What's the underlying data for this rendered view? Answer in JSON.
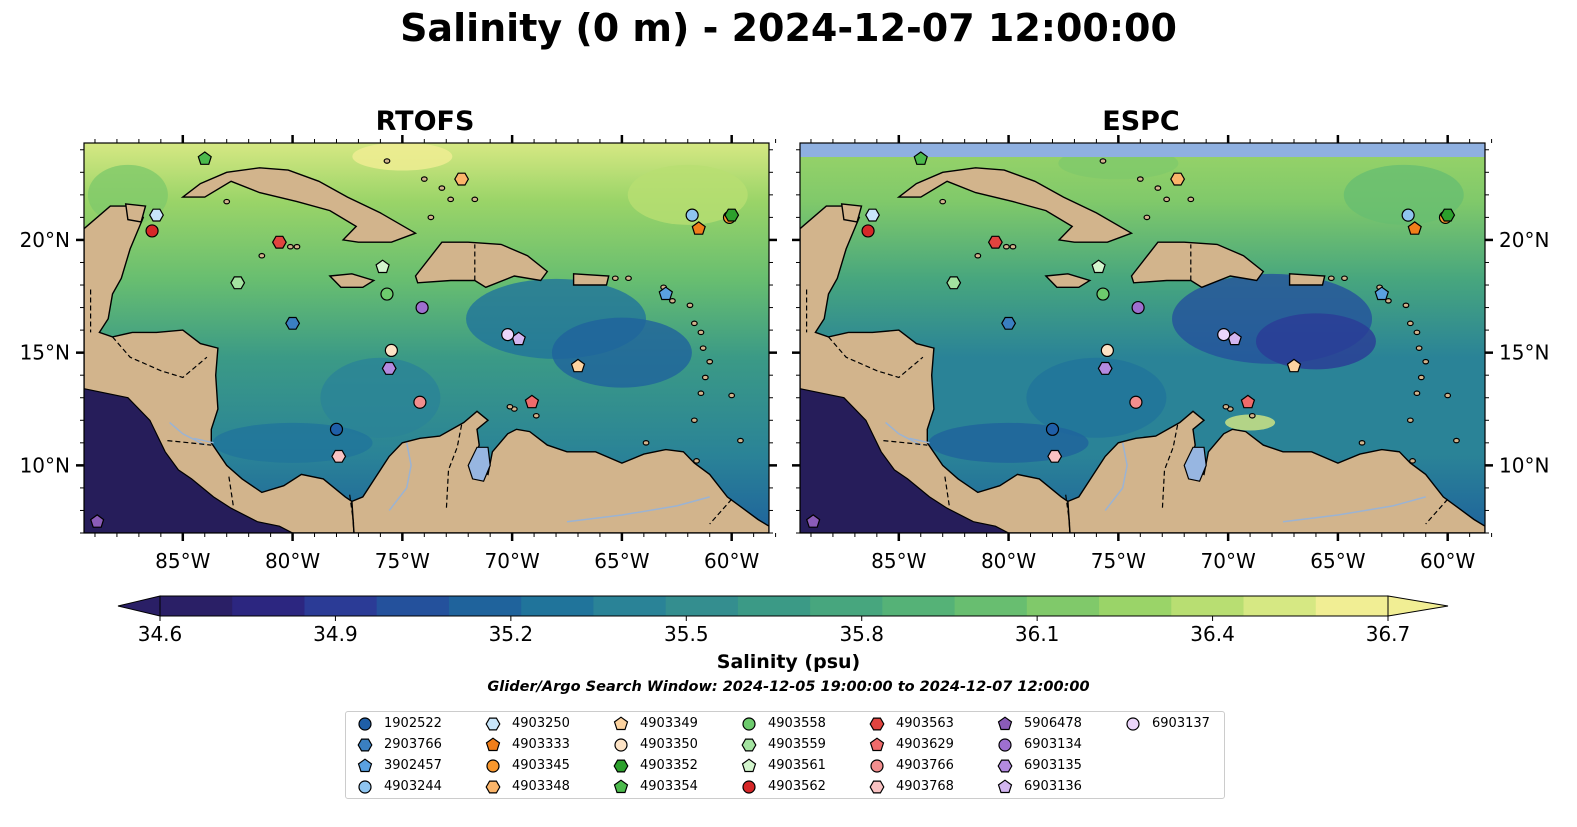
{
  "title": "Salinity (0 m) - 2024-12-07 12:00:00",
  "panels": [
    {
      "title": "RTOFS",
      "model": "RTOFS"
    },
    {
      "title": "ESPC",
      "model": "ESPC"
    }
  ],
  "map_extent": {
    "lon_min": -89.5,
    "lon_max": -58.3,
    "lat_min": 7.0,
    "lat_max": 24.3
  },
  "lon_ticks": [
    {
      "value": -85,
      "label": "85°W"
    },
    {
      "value": -80,
      "label": "80°W"
    },
    {
      "value": -75,
      "label": "75°W"
    },
    {
      "value": -70,
      "label": "70°W"
    },
    {
      "value": -65,
      "label": "65°W"
    },
    {
      "value": -60,
      "label": "60°W"
    }
  ],
  "lat_ticks": [
    {
      "value": 20,
      "label": "20°N"
    },
    {
      "value": 15,
      "label": "15°N"
    },
    {
      "value": 10,
      "label": "10°N"
    }
  ],
  "colorbar": {
    "label": "Salinity (psu)",
    "min": 34.6,
    "max": 36.7,
    "tick_labels": [
      "34.6",
      "34.9",
      "35.2",
      "35.5",
      "35.8",
      "36.1",
      "36.4",
      "36.7"
    ],
    "colors": [
      "#2a1f66",
      "#2c2680",
      "#2b3b96",
      "#24519c",
      "#1f639c",
      "#20749b",
      "#2a8397",
      "#348e8f",
      "#3b9a86",
      "#47a67e",
      "#55b277",
      "#68be70",
      "#80c96a",
      "#9ad468",
      "#b8de72",
      "#d6e883",
      "#f1ee94"
    ],
    "extend": "both"
  },
  "colors": {
    "land": "#d2b48c",
    "lake": "#97b6e1",
    "ocean_deep_fresh": "#261d5a",
    "high_salinity": "#f5ee98"
  },
  "search_window": "Glider/Argo Search Window: 2024-12-05 19:00:00 to 2024-12-07 12:00:00",
  "legend": [
    {
      "id": "1902522",
      "marker": "circle",
      "color": "#1f5fa8"
    },
    {
      "id": "2903766",
      "marker": "hexagon",
      "color": "#3a7fc1"
    },
    {
      "id": "3902457",
      "marker": "pentagon",
      "color": "#5aa0e0"
    },
    {
      "id": "4903244",
      "marker": "circle",
      "color": "#8fc5f0"
    },
    {
      "id": "4903250",
      "marker": "hexagon",
      "color": "#c9e6fa"
    },
    {
      "id": "4903333",
      "marker": "pentagon",
      "color": "#f07e1a"
    },
    {
      "id": "4903345",
      "marker": "circle",
      "color": "#f8972d"
    },
    {
      "id": "4903348",
      "marker": "hexagon",
      "color": "#fbb56a"
    },
    {
      "id": "4903349",
      "marker": "pentagon",
      "color": "#fcd3a0"
    },
    {
      "id": "4903350",
      "marker": "circle",
      "color": "#fde3c5"
    },
    {
      "id": "4903352",
      "marker": "hexagon",
      "color": "#2ca02c"
    },
    {
      "id": "4903354",
      "marker": "pentagon",
      "color": "#4cba4c"
    },
    {
      "id": "4903558",
      "marker": "circle",
      "color": "#6dcb6d"
    },
    {
      "id": "4903559",
      "marker": "hexagon",
      "color": "#a3e3a0"
    },
    {
      "id": "4903561",
      "marker": "pentagon",
      "color": "#d3f5cd"
    },
    {
      "id": "4903562",
      "marker": "circle",
      "color": "#d62728"
    },
    {
      "id": "4903563",
      "marker": "hexagon",
      "color": "#e0443f"
    },
    {
      "id": "4903629",
      "marker": "pentagon",
      "color": "#ef6b6b"
    },
    {
      "id": "4903766",
      "marker": "circle",
      "color": "#f28e8e"
    },
    {
      "id": "4903768",
      "marker": "hexagon",
      "color": "#f9c2c2"
    },
    {
      "id": "5906478",
      "marker": "pentagon",
      "color": "#8a5cb8"
    },
    {
      "id": "6903134",
      "marker": "circle",
      "color": "#9d6fcf"
    },
    {
      "id": "6903135",
      "marker": "hexagon",
      "color": "#b38ae0"
    },
    {
      "id": "6903136",
      "marker": "pentagon",
      "color": "#d3b6f0"
    },
    {
      "id": "6903137",
      "marker": "circle",
      "color": "#ecd6fb"
    }
  ],
  "floats": [
    {
      "id": "1902522",
      "lon": -78.0,
      "lat": 11.6
    },
    {
      "id": "2903766",
      "lon": -80.0,
      "lat": 16.3
    },
    {
      "id": "3902457",
      "lon": -63.0,
      "lat": 17.6
    },
    {
      "id": "4903244",
      "lon": -61.8,
      "lat": 21.1
    },
    {
      "id": "4903250",
      "lon": -86.2,
      "lat": 21.1
    },
    {
      "id": "4903333",
      "lon": -61.5,
      "lat": 20.5
    },
    {
      "id": "4903345",
      "lon": -60.1,
      "lat": 21.0
    },
    {
      "id": "4903348",
      "lon": -72.3,
      "lat": 22.7
    },
    {
      "id": "4903349",
      "lon": -67.0,
      "lat": 14.4
    },
    {
      "id": "4903350",
      "lon": -75.5,
      "lat": 15.1
    },
    {
      "id": "4903352",
      "lon": -60.0,
      "lat": 21.1
    },
    {
      "id": "4903354",
      "lon": -84.0,
      "lat": 23.6
    },
    {
      "id": "4903558",
      "lon": -75.7,
      "lat": 17.6
    },
    {
      "id": "4903559",
      "lon": -82.5,
      "lat": 18.1
    },
    {
      "id": "4903561",
      "lon": -75.9,
      "lat": 18.8
    },
    {
      "id": "4903562",
      "lon": -86.4,
      "lat": 20.4
    },
    {
      "id": "4903563",
      "lon": -80.6,
      "lat": 19.9
    },
    {
      "id": "4903629",
      "lon": -69.1,
      "lat": 12.8
    },
    {
      "id": "4903766",
      "lon": -74.2,
      "lat": 12.8
    },
    {
      "id": "4903768",
      "lon": -77.9,
      "lat": 10.4
    },
    {
      "id": "5906478",
      "lon": -88.9,
      "lat": 7.5
    },
    {
      "id": "6903134",
      "lon": -74.1,
      "lat": 17.0
    },
    {
      "id": "6903135",
      "lon": -75.6,
      "lat": 14.3
    },
    {
      "id": "6903136",
      "lon": -69.7,
      "lat": 15.6
    },
    {
      "id": "6903137",
      "lon": -70.2,
      "lat": 15.8
    }
  ]
}
